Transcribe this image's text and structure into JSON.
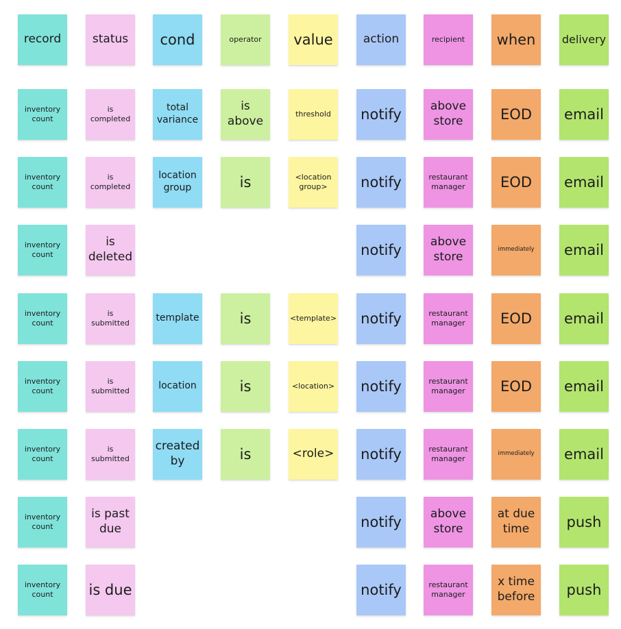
{
  "colors": {
    "record": "#7fe3da",
    "status": "#f4c8ef",
    "cond": "#8fdcf4",
    "operator": "#cdf0a0",
    "value": "#fdf5a0",
    "action": "#a9c8f7",
    "recipient": "#ee94e3",
    "when": "#f3a96a",
    "delivery": "#b3e56e"
  },
  "header": [
    {
      "col": "record",
      "text": "record",
      "size": "l"
    },
    {
      "col": "status",
      "text": "status",
      "size": "l"
    },
    {
      "col": "cond",
      "text": "cond",
      "size": "xl"
    },
    {
      "col": "operator",
      "text": "operator",
      "size": "s"
    },
    {
      "col": "value",
      "text": "value",
      "size": "xl"
    },
    {
      "col": "action",
      "text": "action",
      "size": "l"
    },
    {
      "col": "recipient",
      "text": "recipient",
      "size": "s"
    },
    {
      "col": "when",
      "text": "when",
      "size": "xl"
    },
    {
      "col": "delivery",
      "text": "delivery",
      "size": "m"
    }
  ],
  "rows": [
    {
      "record": {
        "text": "inventory count",
        "size": "s"
      },
      "status": {
        "text": "is completed",
        "size": "s"
      },
      "cond": {
        "text": "total variance",
        "size": "m"
      },
      "operator": {
        "text": "is above",
        "size": "l"
      },
      "value": {
        "text": "threshold",
        "size": "s"
      },
      "action": {
        "text": "notify",
        "size": "xl"
      },
      "recipient": {
        "text": "above store",
        "size": "l"
      },
      "when": {
        "text": "EOD",
        "size": "xl"
      },
      "delivery": {
        "text": "email",
        "size": "xl"
      }
    },
    {
      "record": {
        "text": "inventory count",
        "size": "s"
      },
      "status": {
        "text": "is completed",
        "size": "s"
      },
      "cond": {
        "text": "location group",
        "size": "m"
      },
      "operator": {
        "text": "is",
        "size": "xl"
      },
      "value": {
        "text": "<location group>",
        "size": "s"
      },
      "action": {
        "text": "notify",
        "size": "xl"
      },
      "recipient": {
        "text": "restaurant manager",
        "size": "s"
      },
      "when": {
        "text": "EOD",
        "size": "xl"
      },
      "delivery": {
        "text": "email",
        "size": "xl"
      }
    },
    {
      "record": {
        "text": "inventory count",
        "size": "s"
      },
      "status": {
        "text": "is deleted",
        "size": "l"
      },
      "action": {
        "text": "notify",
        "size": "xl"
      },
      "recipient": {
        "text": "above store",
        "size": "l"
      },
      "when": {
        "text": "immediately",
        "size": "xs"
      },
      "delivery": {
        "text": "email",
        "size": "xl"
      }
    },
    {
      "record": {
        "text": "inventory count",
        "size": "s"
      },
      "status": {
        "text": "is submitted",
        "size": "s"
      },
      "cond": {
        "text": "template",
        "size": "m"
      },
      "operator": {
        "text": "is",
        "size": "xl"
      },
      "value": {
        "text": "<template>",
        "size": "s"
      },
      "action": {
        "text": "notify",
        "size": "xl"
      },
      "recipient": {
        "text": "restaurant manager",
        "size": "s"
      },
      "when": {
        "text": "EOD",
        "size": "xl"
      },
      "delivery": {
        "text": "email",
        "size": "xl"
      }
    },
    {
      "record": {
        "text": "inventory count",
        "size": "s"
      },
      "status": {
        "text": "is submitted",
        "size": "s"
      },
      "cond": {
        "text": "location",
        "size": "m"
      },
      "operator": {
        "text": "is",
        "size": "xl"
      },
      "value": {
        "text": "<location>",
        "size": "s"
      },
      "action": {
        "text": "notify",
        "size": "xl"
      },
      "recipient": {
        "text": "restaurant manager",
        "size": "s"
      },
      "when": {
        "text": "EOD",
        "size": "xl"
      },
      "delivery": {
        "text": "email",
        "size": "xl"
      }
    },
    {
      "record": {
        "text": "inventory count",
        "size": "s"
      },
      "status": {
        "text": "is submitted",
        "size": "s"
      },
      "cond": {
        "text": "created by",
        "size": "l"
      },
      "operator": {
        "text": "is",
        "size": "xl"
      },
      "value": {
        "text": "<role>",
        "size": "l"
      },
      "action": {
        "text": "notify",
        "size": "xl"
      },
      "recipient": {
        "text": "restaurant manager",
        "size": "s"
      },
      "when": {
        "text": "immediately",
        "size": "xs"
      },
      "delivery": {
        "text": "email",
        "size": "xl"
      }
    },
    {
      "record": {
        "text": "inventory count",
        "size": "s"
      },
      "status": {
        "text": "is past due",
        "size": "l"
      },
      "action": {
        "text": "notify",
        "size": "xl"
      },
      "recipient": {
        "text": "above store",
        "size": "l"
      },
      "when": {
        "text": "at due time",
        "size": "l"
      },
      "delivery": {
        "text": "push",
        "size": "xl"
      }
    },
    {
      "record": {
        "text": "inventory count",
        "size": "s"
      },
      "status": {
        "text": "is due",
        "size": "xl"
      },
      "action": {
        "text": "notify",
        "size": "xl"
      },
      "recipient": {
        "text": "restaurant manager",
        "size": "s"
      },
      "when": {
        "text": "x time before",
        "size": "l"
      },
      "delivery": {
        "text": "push",
        "size": "xl"
      }
    }
  ]
}
